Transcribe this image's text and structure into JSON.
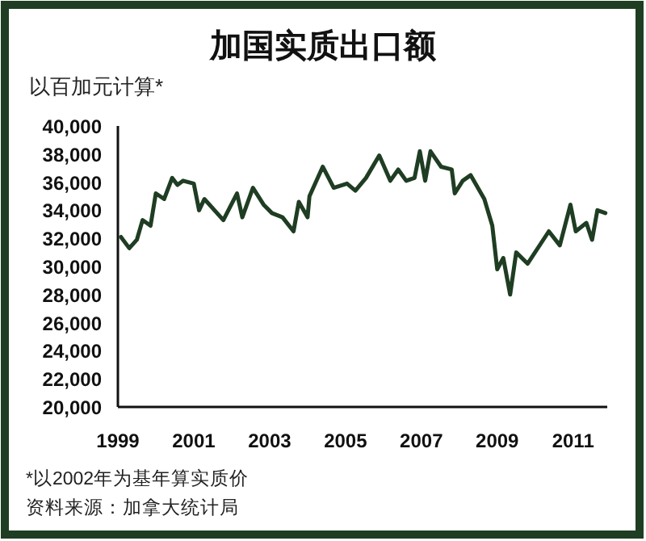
{
  "chart_data": {
    "type": "line",
    "title": "加国实质出口额",
    "ylabel": "以百加元计算*",
    "x": [
      1999.08,
      1999.3,
      1999.5,
      1999.65,
      1999.86,
      2000.0,
      2000.22,
      2000.43,
      2000.57,
      2000.72,
      2001.0,
      2001.14,
      2001.28,
      2001.78,
      2002.14,
      2002.28,
      2002.56,
      2002.84,
      2003.06,
      2003.34,
      2003.63,
      2003.77,
      2004.0,
      2004.05,
      2004.4,
      2004.69,
      2005.04,
      2005.26,
      2005.54,
      2005.89,
      2006.18,
      2006.39,
      2006.6,
      2006.82,
      2006.96,
      2007.1,
      2007.24,
      2007.52,
      2007.8,
      2007.88,
      2008.09,
      2008.3,
      2008.66,
      2008.87,
      2009.0,
      2009.16,
      2009.34,
      2009.5,
      2009.8,
      2010.36,
      2010.65,
      2010.93,
      2011.07,
      2011.35,
      2011.5,
      2011.64,
      2011.85
    ],
    "series": [
      {
        "color": "#1f3d22",
        "values": [
          32100,
          31300,
          31900,
          33300,
          32900,
          35200,
          34800,
          36300,
          35800,
          36100,
          35900,
          34000,
          34800,
          33300,
          35200,
          33500,
          35600,
          34400,
          33800,
          33500,
          32500,
          34600,
          33500,
          35000,
          37100,
          35600,
          35900,
          35400,
          36300,
          37900,
          36100,
          36900,
          36100,
          36300,
          38200,
          36100,
          38200,
          37100,
          36900,
          35200,
          36100,
          36500,
          34800,
          32900,
          29800,
          30600,
          28000,
          31000,
          30200,
          32500,
          31500,
          34400,
          32500,
          33100,
          31900,
          34000,
          33800
        ]
      }
    ],
    "xlim": [
      1999,
      2011.9
    ],
    "xticks": [
      1999,
      2001,
      2003,
      2005,
      2007,
      2009,
      2011
    ],
    "ylim": [
      20000,
      40000
    ],
    "yticks": [
      {
        "value": 20000,
        "label": "20,000"
      },
      {
        "value": 22000,
        "label": "22,000"
      },
      {
        "value": 24000,
        "label": "24,000"
      },
      {
        "value": 26000,
        "label": "26,000"
      },
      {
        "value": 28000,
        "label": "28,000"
      },
      {
        "value": 30000,
        "label": "30,000"
      },
      {
        "value": 32000,
        "label": "32,000"
      },
      {
        "value": 34000,
        "label": "34,000"
      },
      {
        "value": 36000,
        "label": "36,000"
      },
      {
        "value": 38000,
        "label": "38,000"
      },
      {
        "value": 40000,
        "label": "40,000"
      }
    ],
    "annotations": [
      "*以2002年为基年算实质价",
      "资料来源：加拿大统计局"
    ]
  }
}
